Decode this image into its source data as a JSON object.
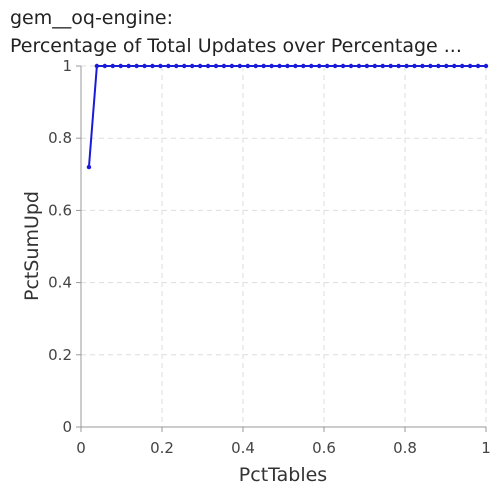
{
  "chart_data": {
    "type": "line",
    "title_lines": [
      "gem__oq-engine:",
      "Percentage of Total Updates over Percentage ..."
    ],
    "xlabel": "PctTables",
    "ylabel": "PctSumUpd",
    "xlim": [
      0,
      1
    ],
    "ylim": [
      0,
      1
    ],
    "xticks": [
      "0",
      "0.2",
      "0.4",
      "0.6",
      "0.8",
      "1"
    ],
    "yticks": [
      "0",
      "0.2",
      "0.4",
      "0.6",
      "0.8",
      "1"
    ],
    "grid": true,
    "series": [
      {
        "color": "#1a1adb",
        "x": [
          0.0196,
          0.0392,
          0.0588,
          0.0784,
          0.098,
          0.1176,
          0.1373,
          0.1569,
          0.1765,
          0.1961,
          0.2157,
          0.2353,
          0.2549,
          0.2745,
          0.2941,
          0.3137,
          0.3333,
          0.3529,
          0.3725,
          0.3922,
          0.4118,
          0.4314,
          0.451,
          0.4706,
          0.4902,
          0.5098,
          0.5294,
          0.549,
          0.5686,
          0.5882,
          0.6078,
          0.6275,
          0.6471,
          0.6667,
          0.6863,
          0.7059,
          0.7255,
          0.7451,
          0.7647,
          0.7843,
          0.8039,
          0.8235,
          0.8431,
          0.8627,
          0.8824,
          0.902,
          0.9216,
          0.9412,
          0.9608,
          0.9804,
          1.0
        ],
        "y": [
          0.72,
          1,
          1,
          1,
          1,
          1,
          1,
          1,
          1,
          1,
          1,
          1,
          1,
          1,
          1,
          1,
          1,
          1,
          1,
          1,
          1,
          1,
          1,
          1,
          1,
          1,
          1,
          1,
          1,
          1,
          1,
          1,
          1,
          1,
          1,
          1,
          1,
          1,
          1,
          1,
          1,
          1,
          1,
          1,
          1,
          1,
          1,
          1,
          1,
          1,
          1
        ]
      }
    ]
  }
}
